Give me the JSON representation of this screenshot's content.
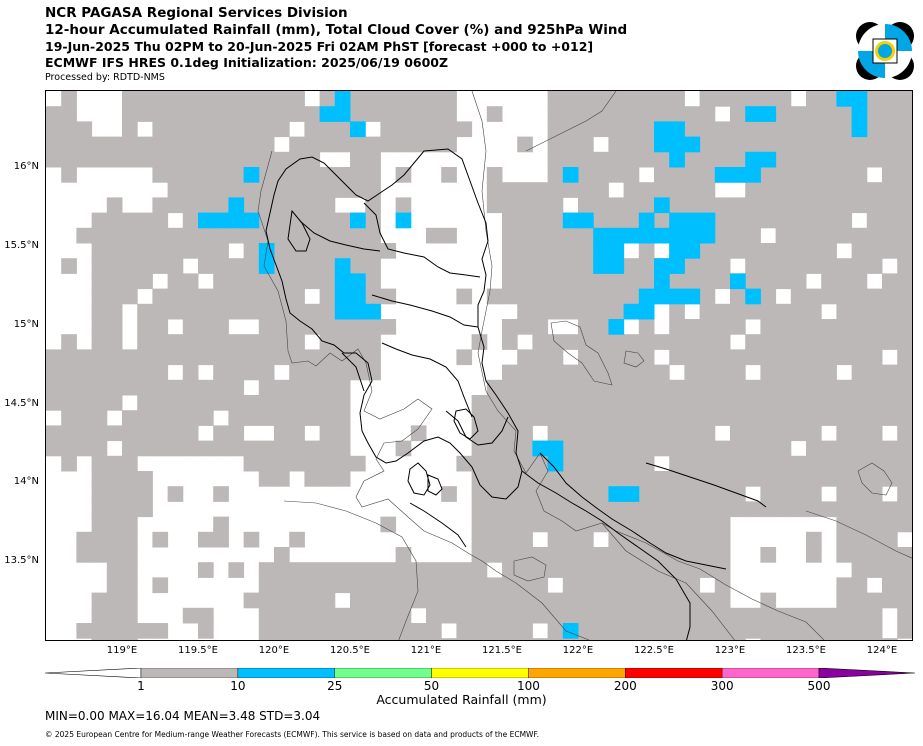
{
  "title": {
    "line1": "NCR PAGASA Regional Services Division",
    "line2": "12-hour Accumulated Rainfall (mm), Total Cloud Cover (%) and 925hPa Wind",
    "line3": "19-Jun-2025 Thu 02PM to 20-Jun-2025 Fri 02AM PhST [forecast +000 to +012]",
    "line4": "ECMWF IFS HRES 0.1deg Initialization: 2025/06/19 0600Z"
  },
  "processed_by": "Processed by: RDTD-NMS",
  "map": {
    "lat_labels": [
      "16°N",
      "15.5°N",
      "15°N",
      "14.5°N",
      "14°N",
      "13.5°N"
    ],
    "lon_labels": [
      "119°E",
      "119.5°E",
      "120°E",
      "120.5°E",
      "121°E",
      "121.5°E",
      "122°E",
      "122.5°E",
      "123°E",
      "123.5°E",
      "124°E"
    ],
    "colors": {
      "cloud": "#bcb8b8",
      "rain_1_10": "#bcb8b8",
      "rain_10_25": "#00bfff",
      "coast": "#333333",
      "boundary": "#000000"
    }
  },
  "colorbar": {
    "title": "Accumulated Rainfall (mm)",
    "ticks": [
      "1",
      "10",
      "25",
      "50",
      "100",
      "200",
      "300",
      "500"
    ],
    "colors": [
      "#bcb8b8",
      "#00bfff",
      "#6fff8a",
      "#ffff00",
      "#ffa500",
      "#ff0000",
      "#ff66cc",
      "#8b00a0"
    ]
  },
  "stats": "MIN=0.00   MAX=16.04   MEAN=3.48   STD=3.04",
  "copyright": "© 2025 European Centre for Medium-range Weather Forecasts (ECMWF). This service is based on data and products of the ECMWF."
}
